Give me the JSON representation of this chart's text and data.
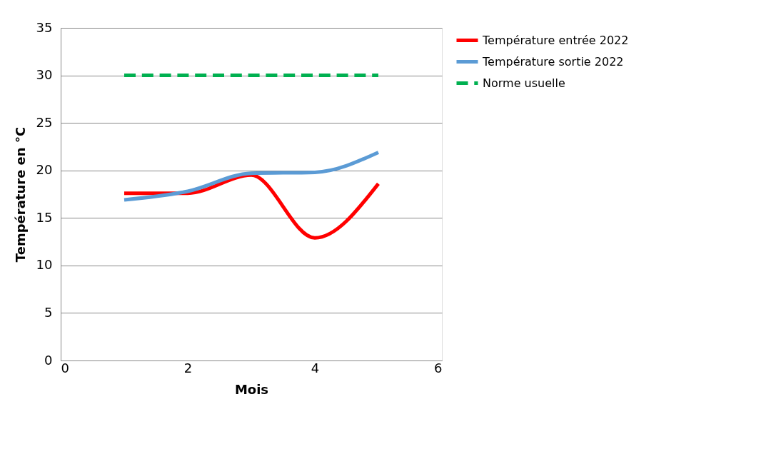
{
  "chart_data": {
    "type": "line",
    "xlabel": "Mois",
    "ylabel": "Température en °C",
    "x": [
      1,
      2,
      3,
      4,
      5
    ],
    "series": [
      {
        "name": "Température entrée 2022",
        "color": "#ff0000",
        "values": [
          17.6,
          17.6,
          19.5,
          12.9,
          18.6
        ],
        "line_style": "solid"
      },
      {
        "name": "Température sortie 2022",
        "color": "#5b9bd5",
        "values": [
          16.9,
          17.8,
          19.7,
          19.8,
          21.9
        ],
        "line_style": "solid"
      },
      {
        "name": "Norme usuelle",
        "color": "#00b050",
        "values": [
          30,
          30,
          30,
          30,
          30
        ],
        "line_style": "dashed"
      }
    ],
    "xlim": [
      0,
      6
    ],
    "xticks": [
      0,
      2,
      4,
      6
    ],
    "ylim": [
      0,
      35
    ],
    "yticks": [
      0,
      5,
      10,
      15,
      20,
      25,
      30,
      35
    ],
    "grid": "y",
    "legend": "right",
    "marker": "none"
  }
}
